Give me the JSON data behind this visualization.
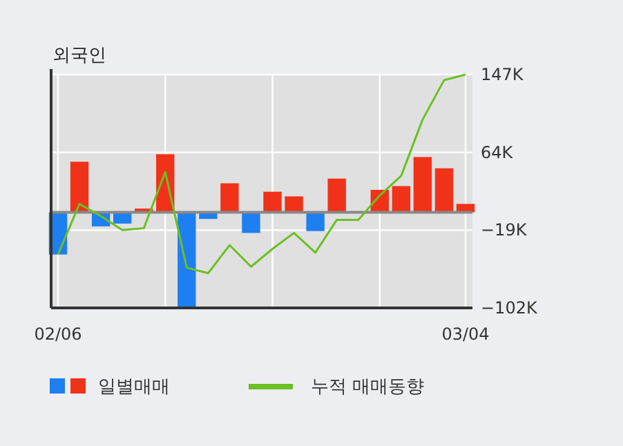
{
  "chart_data": {
    "type": "bar",
    "title": "외국인",
    "categories": [
      "02/06",
      null,
      null,
      null,
      null,
      null,
      null,
      null,
      null,
      null,
      null,
      null,
      null,
      null,
      null,
      null,
      null,
      null,
      null,
      "03/04"
    ],
    "series": [
      {
        "name": "일별매매",
        "values": [
          -45,
          54,
          -15,
          -12,
          4,
          62,
          -101,
          -7,
          31,
          -22,
          22,
          17,
          -20,
          36,
          0,
          24,
          28,
          59,
          47,
          9
        ],
        "colors": [
          "#1e7ff0",
          "#f03219",
          "#1e7ff0",
          "#1e7ff0",
          "#f03219",
          "#f03219",
          "#1e7ff0",
          "#1e7ff0",
          "#f03219",
          "#1e7ff0",
          "#f03219",
          "#f03219",
          "#1e7ff0",
          "#f03219",
          "#f03219",
          "#f03219",
          "#f03219",
          "#f03219",
          "#f03219",
          "#f03219"
        ]
      },
      {
        "type": "line",
        "name": "누적 매매동향",
        "color": "#6cbf24",
        "values": [
          -45,
          9,
          -4,
          -19,
          -17,
          43,
          -59,
          -65,
          -35,
          -58,
          -39,
          -22,
          -43,
          -8,
          -8,
          18,
          39,
          99,
          141,
          147
        ]
      }
    ],
    "ylim": [
      -102,
      147
    ],
    "yticks": [
      {
        "value": 147,
        "label": "147K"
      },
      {
        "value": 64,
        "label": "64K"
      },
      {
        "value": -19,
        "label": "−19K"
      },
      {
        "value": -102,
        "label": "−102K"
      }
    ],
    "grid": true,
    "legend": "bottom"
  }
}
